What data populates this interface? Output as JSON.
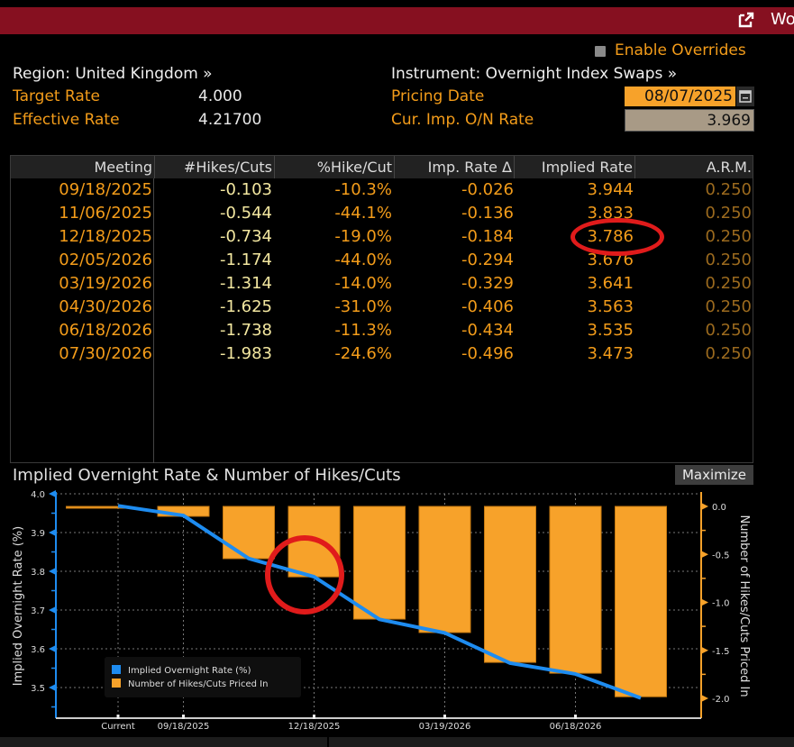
{
  "titlebar": {
    "popout_icon": "popout-icon",
    "partial_title": "Wo",
    "color": "#861020"
  },
  "header": {
    "enable_overrides_label": "Enable Overrides",
    "region_label": "Region: United Kingdom »",
    "target_rate_label": "Target Rate",
    "target_rate_value": "4.000",
    "effective_rate_label": "Effective Rate",
    "effective_rate_value": "4.21700",
    "instrument_label": "Instrument: Overnight Index Swaps »",
    "pricing_date_label": "Pricing Date",
    "pricing_date_value": "08/07/2025",
    "calendar_icon": "calendar-icon",
    "cur_imp_rate_label": "Cur. Imp. O/N Rate",
    "cur_imp_rate_value": "3.969"
  },
  "table": {
    "columns": [
      "Meeting",
      "#Hikes/Cuts",
      "%Hike/Cut",
      "Imp. Rate Δ",
      "Implied Rate",
      "A.R.M."
    ],
    "rows": [
      [
        "09/18/2025",
        "-0.103",
        "-10.3%",
        "-0.026",
        "3.944",
        "0.250"
      ],
      [
        "11/06/2025",
        "-0.544",
        "-44.1%",
        "-0.136",
        "3.833",
        "0.250"
      ],
      [
        "12/18/2025",
        "-0.734",
        "-19.0%",
        "-0.184",
        "3.786",
        "0.250"
      ],
      [
        "02/05/2026",
        "-1.174",
        "-44.0%",
        "-0.294",
        "3.676",
        "0.250"
      ],
      [
        "03/19/2026",
        "-1.314",
        "-14.0%",
        "-0.329",
        "3.641",
        "0.250"
      ],
      [
        "04/30/2026",
        "-1.625",
        "-31.0%",
        "-0.406",
        "3.563",
        "0.250"
      ],
      [
        "06/18/2026",
        "-1.738",
        "-11.3%",
        "-0.434",
        "3.535",
        "0.250"
      ],
      [
        "07/30/2026",
        "-1.983",
        "-24.6%",
        "-0.496",
        "3.473",
        "0.250"
      ]
    ],
    "highlighted_cell": {
      "row": 2,
      "column": "Implied Rate",
      "value": "3.786"
    }
  },
  "chart_section": {
    "title": "Implied Overnight Rate & Number of Hikes/Cuts",
    "maximize_label": "Maximize"
  },
  "chart_data": {
    "type": "bar",
    "title": "Implied Overnight Rate & Number of Hikes/Cuts",
    "categories": [
      "Current",
      "09/18/2025",
      "11/06/2025",
      "12/18/2025",
      "02/05/2026",
      "03/19/2026",
      "04/30/2026",
      "06/18/2026",
      "07/30/2026"
    ],
    "x_tick_labels": [
      "Current",
      "09/18/2025",
      "12/18/2025",
      "03/19/2026",
      "06/18/2026"
    ],
    "series": [
      {
        "name": "Implied Overnight Rate (%)",
        "type": "line",
        "axis": "left",
        "color": "#1e8cf0",
        "values": [
          3.969,
          3.944,
          3.833,
          3.786,
          3.676,
          3.641,
          3.563,
          3.535,
          3.473
        ]
      },
      {
        "name": "Number of Hikes/Cuts Priced In",
        "type": "bar",
        "axis": "right",
        "color": "#f7a22a",
        "values": [
          0.0,
          -0.103,
          -0.544,
          -0.734,
          -1.174,
          -1.314,
          -1.625,
          -1.738,
          -1.983
        ]
      }
    ],
    "ylabel": "Implied Overnight Rate (%)",
    "ylim": [
      3.42,
      4.0
    ],
    "yticks": [
      "4.0",
      "3.9",
      "3.8",
      "3.7",
      "3.6",
      "3.5"
    ],
    "y2label": "Number of Hikes/Cuts Priced In",
    "y2lim": [
      -2.15,
      0.0
    ],
    "y2ticks": [
      "0.0",
      "-0.5",
      "-1.0",
      "-1.5",
      "-2.0"
    ],
    "grid": true,
    "legend": "bottom-left",
    "annotation": "red circle around 12/18/2025"
  }
}
